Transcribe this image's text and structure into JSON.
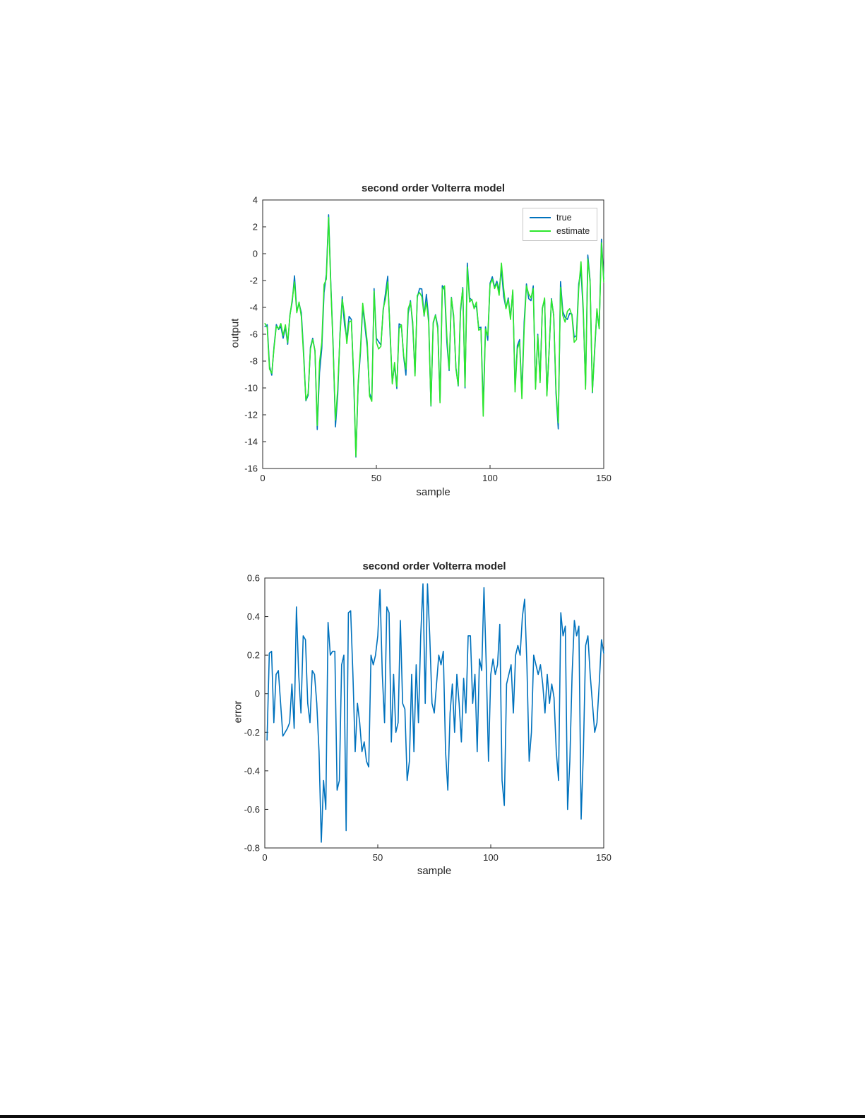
{
  "page": {
    "background": "#ffffff"
  },
  "chart_data": [
    {
      "type": "line",
      "title": "second order Volterra model",
      "xlabel": "sample",
      "ylabel": "output",
      "xlim": [
        0,
        150
      ],
      "ylim": [
        -16,
        4
      ],
      "xticks": [
        "0",
        "50",
        "100",
        "150"
      ],
      "yticks": [
        "4",
        "2",
        "0",
        "-2",
        "-4",
        "-6",
        "-8",
        "-10",
        "-12",
        "-14",
        "-16"
      ],
      "grid": false,
      "legend_position": "top-right",
      "series": [
        {
          "name": "true",
          "color": "#0072bd",
          "values": [
            -5.44,
            -5.29,
            -8.38,
            -9.05,
            -6.9,
            -5.28,
            -5.65,
            -5.42,
            -6.3,
            -5.48,
            -6.75,
            -4.55,
            -3.58,
            -1.65,
            -4.3,
            -3.7,
            -4.4,
            -7.32,
            -10.95,
            -10.55,
            -6.98,
            -6.3,
            -7.25,
            -13.1,
            -8.87,
            -7.05,
            -2.9,
            -1.53,
            2.9,
            -2.38,
            -6.88,
            -12.9,
            -10.55,
            -5.95,
            -3.2,
            -5.31,
            -6.28,
            -4.67,
            -4.9,
            -9.3,
            -15.15,
            -9.75,
            -7.4,
            -3.95,
            -5.45,
            -6.98,
            -10.4,
            -10.85,
            -2.6,
            -6.3,
            -6.56,
            -6.8,
            -4.25,
            -2.95,
            -1.68,
            -5.85,
            -9.6,
            -8.3,
            -10.05,
            -5.22,
            -5.35,
            -7.68,
            -9.05,
            -4.45,
            -3.5,
            -5.4,
            -8.95,
            -3.25,
            -2.6,
            -2.63,
            -4.65,
            -3.03,
            -4.8,
            -11.35,
            -5.2,
            -4.55,
            -5.4,
            -10.95,
            -2.38,
            -2.7,
            -6.6,
            -8.7,
            -3.25,
            -4.8,
            -8.5,
            -9.85,
            -4.35,
            -2.52,
            -10.0,
            -0.7,
            -3.3,
            -3.45,
            -4.0,
            -3.9,
            -5.52,
            -5.48,
            -11.55,
            -5.45,
            -6.45,
            -2.2,
            -1.72,
            -2.5,
            -2.05,
            -2.74,
            -1.15,
            -3.18,
            -4.05,
            -3.3,
            -4.75,
            -2.8,
            -10.1,
            -6.85,
            -6.4,
            -10.4,
            -5.11,
            -2.25,
            -3.35,
            -3.5,
            -2.4,
            -9.95,
            -6.0,
            -9.45,
            -4.05,
            -3.4,
            -10.5,
            -7.15,
            -3.35,
            -4.62,
            -10.4,
            -13.05,
            -2.08,
            -4.3,
            -4.75,
            -4.9,
            -4.45,
            -4.5,
            -6.22,
            -6.1,
            -2.25,
            -1.25,
            -4.4,
            -9.85,
            -0.1,
            -2.0,
            -10.35,
            -7.3,
            -4.25,
            -5.55,
            1.08,
            -1.89
          ]
        },
        {
          "name": "estimate",
          "color": "#2de62d",
          "values": [
            -5.2,
            -5.5,
            -8.6,
            -8.9,
            -7.0,
            -5.4,
            -5.6,
            -5.2,
            -6.1,
            -5.3,
            -6.6,
            -4.6,
            -3.4,
            -2.1,
            -4.4,
            -3.6,
            -4.7,
            -7.6,
            -10.9,
            -10.4,
            -7.1,
            -6.4,
            -7.2,
            -12.8,
            -8.1,
            -6.6,
            -2.3,
            -1.9,
            2.7,
            -2.6,
            -7.1,
            -12.4,
            -10.1,
            -6.1,
            -3.4,
            -4.6,
            -6.7,
            -5.1,
            -5.0,
            -9.0,
            -15.1,
            -9.6,
            -7.1,
            -3.7,
            -5.1,
            -6.6,
            -10.6,
            -11.0,
            -2.8,
            -6.6,
            -7.1,
            -6.9,
            -4.1,
            -3.4,
            -2.1,
            -5.6,
            -9.7,
            -8.1,
            -9.9,
            -5.6,
            -5.3,
            -7.6,
            -8.6,
            -4.1,
            -3.6,
            -5.1,
            -9.1,
            -3.1,
            -2.9,
            -3.2,
            -4.6,
            -3.6,
            -5.1,
            -11.3,
            -5.1,
            -4.6,
            -5.6,
            -11.1,
            -2.6,
            -2.4,
            -6.1,
            -8.6,
            -3.3,
            -4.6,
            -8.6,
            -9.8,
            -4.1,
            -2.6,
            -9.9,
            -1.0,
            -3.6,
            -3.4,
            -4.1,
            -3.6,
            -5.7,
            -5.6,
            -12.1,
            -5.6,
            -6.1,
            -2.3,
            -1.9,
            -2.6,
            -2.2,
            -3.1,
            -0.7,
            -2.6,
            -4.1,
            -3.4,
            -4.9,
            -2.7,
            -10.3,
            -7.1,
            -6.6,
            -10.8,
            -5.6,
            -2.4,
            -3.0,
            -3.3,
            -2.6,
            -10.1,
            -6.1,
            -9.6,
            -4.1,
            -3.3,
            -10.6,
            -7.1,
            -3.4,
            -4.6,
            -10.1,
            -12.6,
            -2.5,
            -4.6,
            -5.1,
            -4.3,
            -4.1,
            -4.6,
            -6.6,
            -6.4,
            -2.6,
            -0.6,
            -4.1,
            -10.1,
            -0.4,
            -2.1,
            -10.3,
            -7.1,
            -4.1,
            -5.6,
            0.8,
            -2.1
          ]
        }
      ]
    },
    {
      "type": "line",
      "title": "second order Volterra model",
      "xlabel": "sample",
      "ylabel": "error",
      "xlim": [
        0,
        150
      ],
      "ylim": [
        -0.8,
        0.6
      ],
      "xticks": [
        "0",
        "50",
        "100",
        "150"
      ],
      "yticks": [
        "0.6",
        "0.4",
        "0.2",
        "0",
        "-0.2",
        "-0.4",
        "-0.6",
        "-0.8"
      ],
      "grid": false,
      "series": [
        {
          "name": "error",
          "color": "#0072bd",
          "values": [
            -0.24,
            0.21,
            0.22,
            -0.15,
            0.1,
            0.12,
            -0.05,
            -0.22,
            -0.2,
            -0.18,
            -0.15,
            0.05,
            -0.18,
            0.45,
            0.1,
            -0.1,
            0.3,
            0.28,
            -0.05,
            -0.15,
            0.12,
            0.1,
            -0.05,
            -0.3,
            -0.77,
            -0.45,
            -0.6,
            0.37,
            0.2,
            0.22,
            0.22,
            -0.5,
            -0.45,
            0.15,
            0.2,
            -0.71,
            0.42,
            0.43,
            0.1,
            -0.3,
            -0.05,
            -0.15,
            -0.3,
            -0.25,
            -0.35,
            -0.38,
            0.2,
            0.15,
            0.2,
            0.3,
            0.54,
            0.1,
            -0.15,
            0.45,
            0.42,
            -0.25,
            0.1,
            -0.2,
            -0.15,
            0.38,
            -0.05,
            -0.08,
            -0.45,
            -0.35,
            0.1,
            -0.3,
            0.15,
            -0.15,
            0.3,
            0.57,
            -0.05,
            0.57,
            0.3,
            -0.05,
            -0.1,
            0.05,
            0.2,
            0.15,
            0.22,
            -0.3,
            -0.5,
            -0.1,
            0.05,
            -0.2,
            0.1,
            -0.05,
            -0.25,
            0.08,
            -0.1,
            0.3,
            0.3,
            -0.05,
            0.1,
            -0.3,
            0.18,
            0.12,
            0.55,
            0.15,
            -0.35,
            0.1,
            0.18,
            0.1,
            0.15,
            0.36,
            -0.45,
            -0.58,
            0.05,
            0.1,
            0.15,
            -0.1,
            0.2,
            0.25,
            0.2,
            0.4,
            0.49,
            0.15,
            -0.35,
            -0.2,
            0.2,
            0.15,
            0.1,
            0.15,
            0.05,
            -0.1,
            0.1,
            -0.05,
            0.05,
            -0.02,
            -0.3,
            -0.45,
            0.42,
            0.3,
            0.35,
            -0.6,
            -0.35,
            0.1,
            0.38,
            0.3,
            0.35,
            -0.65,
            -0.3,
            0.25,
            0.3,
            0.1,
            -0.05,
            -0.2,
            -0.15,
            0.05,
            0.28,
            0.21
          ]
        }
      ]
    }
  ]
}
